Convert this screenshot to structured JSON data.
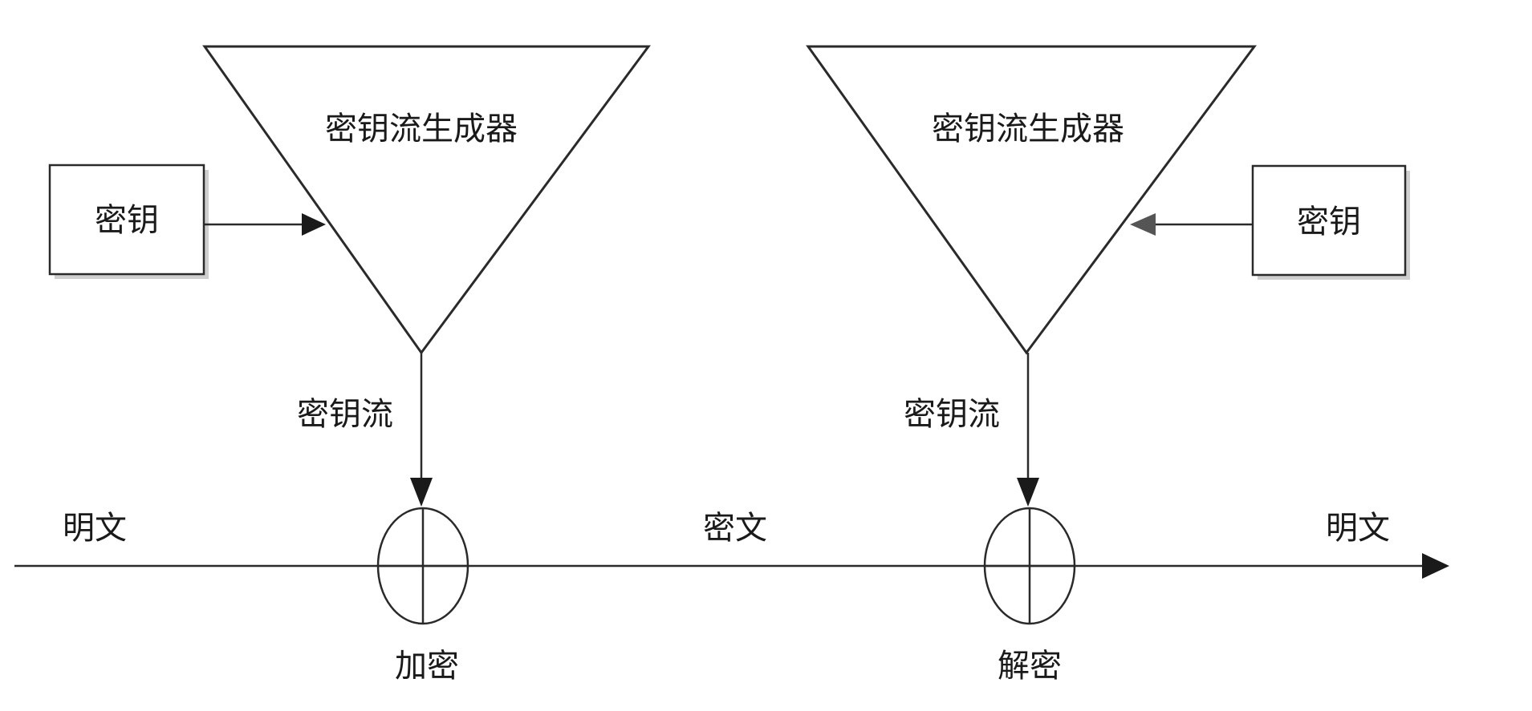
{
  "encrypt": {
    "generator_label": "密钥流生成器",
    "key_label": "密钥",
    "keystream_label": "密钥流",
    "operation_label": "加密"
  },
  "decrypt": {
    "generator_label": "密钥流生成器",
    "key_label": "密钥",
    "keystream_label": "密钥流",
    "operation_label": "解密"
  },
  "line": {
    "plaintext_in_label": "明文",
    "ciphertext_label": "密文",
    "plaintext_out_label": "明文"
  }
}
